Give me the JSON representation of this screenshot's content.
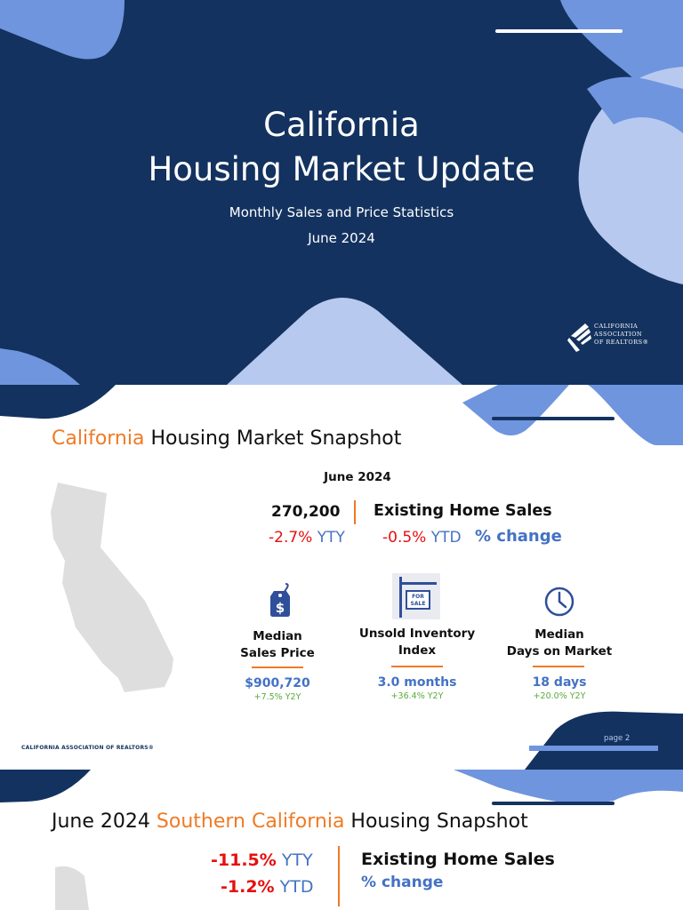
{
  "slide1": {
    "title_line1": "California",
    "title_line2": "Housing Market Update",
    "subtitle": "Monthly Sales and Price Statistics",
    "date": "June 2024",
    "logo_lines": [
      "CALIFORNIA",
      "ASSOCIATION",
      "OF REALTORS®"
    ]
  },
  "slide2": {
    "title_highlight": "California",
    "title_rest": " Housing Market Snapshot",
    "date": "June 2024",
    "sales_value": "270,200",
    "sales_label": "Existing Home Sales",
    "yty_value": "-2.7%",
    "yty_label": " YTY",
    "ytd_value": "-0.5%",
    "ytd_label": " YTD",
    "pct_change": "% change",
    "metrics": [
      {
        "label1": "Median",
        "label2": "Sales Price",
        "value": "$900,720",
        "change": "+7.5% Y2Y",
        "icon": "price-tag-icon"
      },
      {
        "label1": "Unsold Inventory",
        "label2": "Index",
        "value": "3.0 months",
        "change": "+36.4% Y2Y",
        "icon": "for-sale-sign-icon"
      },
      {
        "label1": "Median",
        "label2": "Days on Market",
        "value": "18 days",
        "change": "+20.0% Y2Y",
        "icon": "clock-icon"
      }
    ],
    "sign_text1": "FOR",
    "sign_text2": "SALE",
    "footer": "CALIFORNIA ASSOCIATION OF REALTORS®",
    "page": "page 2"
  },
  "slide3": {
    "title_pre": "June 2024 ",
    "title_highlight": "Southern California",
    "title_rest": " Housing Snapshot",
    "yty_value": "-11.5%",
    "yty_label": " YTY",
    "ytd_value": "-1.2%",
    "ytd_label": " YTD",
    "sales_label": "Existing Home Sales",
    "pct_change": "% change"
  },
  "colors": {
    "navy": "#13325f",
    "accent": "#f07a25",
    "light_blue": "#6f95de",
    "pale_blue": "#b7c9ef"
  }
}
